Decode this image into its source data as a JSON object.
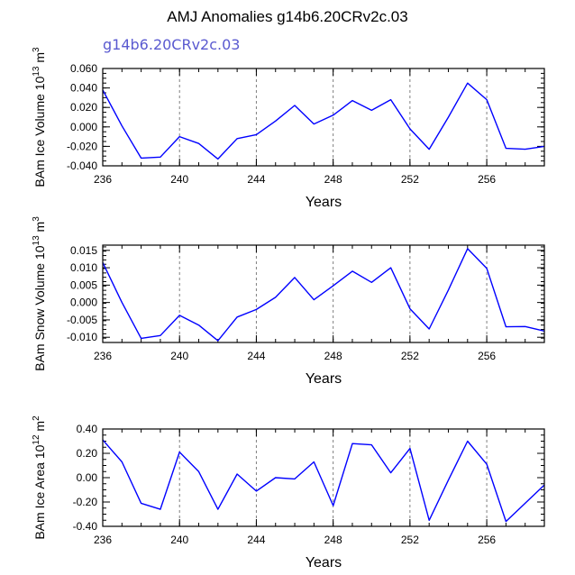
{
  "title": "AMJ Anomalies g14b6.20CRv2c.03",
  "subtitle": "g14b6.20CRv2c.03",
  "colors": {
    "line": "#0000ff",
    "grid": "#7f7f7f",
    "subtitle": "#5a5ad0"
  },
  "chart_data": [
    {
      "type": "line",
      "x": [
        236,
        237,
        238,
        239,
        240,
        241,
        242,
        243,
        244,
        245,
        246,
        247,
        248,
        249,
        250,
        251,
        252,
        253,
        254,
        255,
        256,
        257,
        258,
        259
      ],
      "values": [
        0.038,
        0.001,
        -0.032,
        -0.031,
        -0.01,
        -0.017,
        -0.033,
        -0.012,
        -0.008,
        0.006,
        0.022,
        0.003,
        0.012,
        0.027,
        0.017,
        0.028,
        -0.002,
        -0.023,
        0.01,
        0.045,
        0.028,
        -0.022,
        -0.023,
        -0.02
      ],
      "xlabel": "Years",
      "ylabel": {
        "pre": "BAm Ice Volume 10",
        "exp": "13",
        "mid": " m",
        "exp2": "3"
      },
      "xlim": [
        236,
        259
      ],
      "ylim": [
        -0.04,
        0.06
      ],
      "xticks": [
        "236",
        "240",
        "244",
        "248",
        "252",
        "256"
      ],
      "yticks": [
        "0.060",
        "0.040",
        "0.020",
        "0.000",
        "-0.020",
        "-0.040"
      ],
      "ytick_values": [
        0.06,
        0.04,
        0.02,
        0.0,
        -0.02,
        -0.04
      ],
      "grid_x": [
        240,
        244,
        248,
        252,
        256
      ]
    },
    {
      "type": "line",
      "x": [
        236,
        237,
        238,
        239,
        240,
        241,
        242,
        243,
        244,
        245,
        246,
        247,
        248,
        249,
        250,
        251,
        252,
        253,
        254,
        255,
        256,
        257,
        258,
        259
      ],
      "values": [
        0.0115,
        0.0,
        -0.0103,
        -0.0095,
        -0.0037,
        -0.0065,
        -0.011,
        -0.0042,
        -0.002,
        0.0015,
        0.0072,
        0.0008,
        0.0048,
        0.009,
        0.0058,
        0.01,
        -0.0018,
        -0.0076,
        0.0036,
        0.0155,
        0.0098,
        -0.007,
        -0.0069,
        -0.0082
      ],
      "xlabel": "Years",
      "ylabel": {
        "pre": "BAm Snow Volume 10",
        "exp": "13",
        "mid": " m",
        "exp2": "3"
      },
      "xlim": [
        236,
        259
      ],
      "ylim": [
        -0.0115,
        0.0165
      ],
      "xticks": [
        "236",
        "240",
        "244",
        "248",
        "252",
        "256"
      ],
      "yticks": [
        "0.015",
        "0.010",
        "0.005",
        "0.000",
        "-0.005",
        "-0.010"
      ],
      "ytick_values": [
        0.015,
        0.01,
        0.005,
        0.0,
        -0.005,
        -0.01
      ],
      "grid_x": [
        240,
        244,
        248,
        252,
        256
      ]
    },
    {
      "type": "line",
      "x": [
        236,
        237,
        238,
        239,
        240,
        241,
        242,
        243,
        244,
        245,
        246,
        247,
        248,
        249,
        250,
        251,
        252,
        253,
        254,
        255,
        256,
        257,
        258,
        259
      ],
      "values": [
        0.31,
        0.13,
        -0.21,
        -0.26,
        0.21,
        0.05,
        -0.26,
        0.03,
        -0.11,
        0.0,
        -0.01,
        0.13,
        -0.23,
        0.28,
        0.27,
        0.04,
        0.24,
        -0.35,
        -0.02,
        0.3,
        0.11,
        -0.36,
        -0.21,
        -0.06
      ],
      "xlabel": "Years",
      "ylabel": {
        "pre": "BAm Ice Area 10",
        "exp": "12",
        "mid": " m",
        "exp2": "2"
      },
      "xlim": [
        236,
        259
      ],
      "ylim": [
        -0.4,
        0.4
      ],
      "xticks": [
        "236",
        "240",
        "244",
        "248",
        "252",
        "256"
      ],
      "yticks": [
        "0.40",
        "0.20",
        "0.00",
        "-0.20",
        "-0.40"
      ],
      "ytick_values": [
        0.4,
        0.2,
        0.0,
        -0.2,
        -0.4
      ],
      "grid_x": [
        240,
        244,
        248,
        252,
        256
      ]
    }
  ]
}
